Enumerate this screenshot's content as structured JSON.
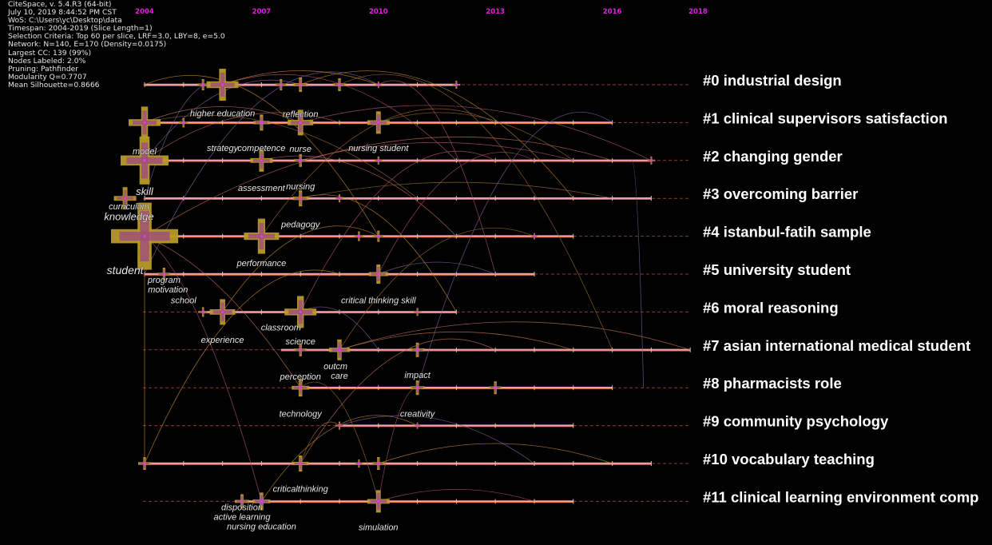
{
  "app": {
    "info_lines": [
      "CiteSpace, v. 5.4.R3 (64-bit)",
      "July 10, 2019 8:44:52 PM CST",
      "WoS: C:\\Users\\yc\\Desktop\\data",
      "Timespan: 2004-2019 (Slice Length=1)",
      "Selection Criteria: Top 60 per slice, LRF=3.0, LBY=8, e=5.0",
      "Network: N=140, E=170 (Density=0.0175)",
      "Largest CC: 139 (99%)",
      "Nodes Labeled: 2.0%",
      "Pruning: Pathfinder",
      "Modularity Q=0.7707",
      "Mean Silhouette=0.8666"
    ]
  },
  "timeline": {
    "year_marks": [
      "2004",
      "2007",
      "2010",
      "2013",
      "2016",
      "2018"
    ],
    "year_values": [
      2004,
      2007,
      2010,
      2013,
      2016,
      2018.2
    ],
    "year_color": "#e020e0"
  },
  "clusters": [
    {
      "label": "#0 industrial design",
      "start": 2004,
      "end": 2012
    },
    {
      "label": "#1 clinical supervisors satisfaction",
      "start": 2004,
      "end": 2016
    },
    {
      "label": "#2 changing gender",
      "start": 2004,
      "end": 2017
    },
    {
      "label": "#3 overcoming barrier",
      "start": 2004,
      "end": 2017
    },
    {
      "label": "#4 istanbul-fatih sample",
      "start": 2004,
      "end": 2015
    },
    {
      "label": "#5 university student",
      "start": 2004,
      "end": 2014
    },
    {
      "label": "#6 moral reasoning",
      "start": 2005.5,
      "end": 2012
    },
    {
      "label": "#7 asian international medical student",
      "start": 2007.5,
      "end": 2018
    },
    {
      "label": "#8 pharmacists role",
      "start": 2008,
      "end": 2016
    },
    {
      "label": "#9 community psychology",
      "start": 2009,
      "end": 2015
    },
    {
      "label": "#10 vocabulary teaching",
      "start": 2004,
      "end": 2017
    },
    {
      "label": "#11 clinical learning environment comp",
      "start": 2006.5,
      "end": 2015
    }
  ],
  "nodes": [
    {
      "cluster": 0,
      "year": 2006,
      "size": 20
    },
    {
      "cluster": 0,
      "year": 2005.5,
      "size": 7
    },
    {
      "cluster": 0,
      "year": 2007.5,
      "size": 7
    },
    {
      "cluster": 0,
      "year": 2008,
      "size": 9
    },
    {
      "cluster": 0,
      "year": 2009,
      "size": 8
    },
    {
      "cluster": 0,
      "year": 2010,
      "size": 4
    },
    {
      "cluster": 0,
      "year": 2012,
      "size": 5
    },
    {
      "cluster": 1,
      "year": 2004,
      "size": 20
    },
    {
      "cluster": 1,
      "year": 2005,
      "size": 6
    },
    {
      "cluster": 1,
      "year": 2007,
      "size": 10
    },
    {
      "cluster": 1,
      "year": 2008,
      "size": 16
    },
    {
      "cluster": 1,
      "year": 2010,
      "size": 14
    },
    {
      "cluster": 2,
      "year": 2004,
      "size": 30
    },
    {
      "cluster": 2,
      "year": 2007,
      "size": 14
    },
    {
      "cluster": 2,
      "year": 2008,
      "size": 8
    },
    {
      "cluster": 2,
      "year": 2010,
      "size": 5
    },
    {
      "cluster": 2,
      "year": 2017,
      "size": 5
    },
    {
      "cluster": 3,
      "year": 2003.5,
      "size": 14
    },
    {
      "cluster": 3,
      "year": 2008,
      "size": 10
    },
    {
      "cluster": 3,
      "year": 2009,
      "size": 5
    },
    {
      "cluster": 4,
      "year": 2004,
      "size": 42
    },
    {
      "cluster": 4,
      "year": 2007,
      "size": 22
    },
    {
      "cluster": 4,
      "year": 2009.5,
      "size": 6
    },
    {
      "cluster": 4,
      "year": 2010,
      "size": 7
    },
    {
      "cluster": 4,
      "year": 2014,
      "size": 4
    },
    {
      "cluster": 5,
      "year": 2004.5,
      "size": 8
    },
    {
      "cluster": 5,
      "year": 2010,
      "size": 12
    },
    {
      "cluster": 6,
      "year": 2006,
      "size": 16
    },
    {
      "cluster": 6,
      "year": 2005.5,
      "size": 6
    },
    {
      "cluster": 6,
      "year": 2008,
      "size": 20
    },
    {
      "cluster": 6,
      "year": 2011,
      "size": 5
    },
    {
      "cluster": 7,
      "year": 2008,
      "size": 8
    },
    {
      "cluster": 7,
      "year": 2009,
      "size": 13
    },
    {
      "cluster": 7,
      "year": 2011,
      "size": 9
    },
    {
      "cluster": 8,
      "year": 2008,
      "size": 11
    },
    {
      "cluster": 8,
      "year": 2011,
      "size": 9
    },
    {
      "cluster": 8,
      "year": 2013,
      "size": 8
    },
    {
      "cluster": 9,
      "year": 2009,
      "size": 5
    },
    {
      "cluster": 9,
      "year": 2011,
      "size": 4
    },
    {
      "cluster": 10,
      "year": 2004,
      "size": 8
    },
    {
      "cluster": 10,
      "year": 2008,
      "size": 10
    },
    {
      "cluster": 10,
      "year": 2010,
      "size": 8
    },
    {
      "cluster": 10,
      "year": 2009.5,
      "size": 5
    },
    {
      "cluster": 11,
      "year": 2006.5,
      "size": 9
    },
    {
      "cluster": 11,
      "year": 2007,
      "size": 11
    },
    {
      "cluster": 11,
      "year": 2010,
      "size": 14
    }
  ],
  "keyword_labels": [
    {
      "text": "higher education",
      "cluster": 1,
      "year": 2006,
      "size": "s",
      "dy": -8
    },
    {
      "text": "reflection",
      "cluster": 1,
      "year": 2008,
      "size": "s",
      "dy": -7
    },
    {
      "text": "model",
      "cluster": 2,
      "year": 2004,
      "size": "s",
      "dy": -8
    },
    {
      "text": "strategy",
      "cluster": 2,
      "year": 2006,
      "size": "s",
      "dy": -12
    },
    {
      "text": "competence",
      "cluster": 2,
      "year": 2007,
      "size": "s",
      "dy": -12
    },
    {
      "text": "nurse",
      "cluster": 2,
      "year": 2008,
      "size": "s",
      "dy": -11
    },
    {
      "text": "nursing student",
      "cluster": 2,
      "year": 2010,
      "size": "s",
      "dy": -12
    },
    {
      "text": "assessment",
      "cluster": 3,
      "year": 2007,
      "size": "s",
      "dy": -9
    },
    {
      "text": "nursing",
      "cluster": 3,
      "year": 2008,
      "size": "s",
      "dy": -11
    },
    {
      "text": "skill",
      "cluster": 3,
      "year": 2004,
      "size": "m",
      "dy": -4
    },
    {
      "text": "curriculum",
      "cluster": 3,
      "year": 2003.6,
      "size": "s",
      "dy": 14
    },
    {
      "text": "knowledge",
      "cluster": 4,
      "year": 2003.6,
      "size": "m",
      "dy": -20
    },
    {
      "text": "pedagogy",
      "cluster": 4,
      "year": 2008,
      "size": "s",
      "dy": -11
    },
    {
      "text": "performance",
      "cluster": 5,
      "year": 2007,
      "size": "s",
      "dy": -10
    },
    {
      "text": "student",
      "cluster": 5,
      "year": 2003.5,
      "size": "l",
      "dy": 0
    },
    {
      "text": "program",
      "cluster": 5,
      "year": 2004.5,
      "size": "s",
      "dy": 11
    },
    {
      "text": "motivation",
      "cluster": 5,
      "year": 2004.6,
      "size": "s",
      "dy": 23
    },
    {
      "text": "school",
      "cluster": 6,
      "year": 2005,
      "size": "s",
      "dy": -11
    },
    {
      "text": "critical thinking skill",
      "cluster": 6,
      "year": 2010,
      "size": "s",
      "dy": -11
    },
    {
      "text": "classroom",
      "cluster": 6,
      "year": 2007.5,
      "size": "s",
      "dy": 23
    },
    {
      "text": "experience",
      "cluster": 7,
      "year": 2006,
      "size": "s",
      "dy": -9
    },
    {
      "text": "science",
      "cluster": 7,
      "year": 2008,
      "size": "s",
      "dy": -7
    },
    {
      "text": "outcm",
      "cluster": 8,
      "year": 2008.9,
      "size": "s",
      "dy": -23
    },
    {
      "text": "care",
      "cluster": 8,
      "year": 2009,
      "size": "s",
      "dy": -11
    },
    {
      "text": "perception",
      "cluster": 8,
      "year": 2008,
      "size": "s",
      "dy": -10
    },
    {
      "text": "impact",
      "cluster": 8,
      "year": 2011,
      "size": "s",
      "dy": -12
    },
    {
      "text": "technology",
      "cluster": 9,
      "year": 2008,
      "size": "s",
      "dy": -11
    },
    {
      "text": "creativity",
      "cluster": 9,
      "year": 2011,
      "size": "s",
      "dy": -11
    },
    {
      "text": "criticalthinking",
      "cluster": 11,
      "year": 2008,
      "size": "s",
      "dy": -12
    },
    {
      "text": "disposition",
      "cluster": 11,
      "year": 2006.5,
      "size": "s",
      "dy": 11
    },
    {
      "text": "active learning",
      "cluster": 11,
      "year": 2006.5,
      "size": "s",
      "dy": 23
    },
    {
      "text": "nursing education",
      "cluster": 11,
      "year": 2007,
      "size": "s",
      "dy": 35
    },
    {
      "text": "simulation",
      "cluster": 11,
      "year": 2010,
      "size": "s",
      "dy": 36
    }
  ],
  "links": [
    [
      0,
      2004,
      4,
      2010,
      -60
    ],
    [
      0,
      2006,
      2,
      2012,
      -50
    ],
    [
      1,
      2004,
      3,
      2011,
      -40
    ],
    [
      2,
      2004,
      0,
      2008,
      -30
    ],
    [
      4,
      2004,
      2,
      2016,
      -90
    ],
    [
      0,
      2008,
      3,
      2015,
      -70
    ],
    [
      1,
      2008,
      2,
      2017,
      -60
    ],
    [
      4,
      2007,
      1,
      2013,
      -70
    ],
    [
      5,
      2004,
      0,
      2010,
      -80
    ],
    [
      2,
      2007,
      4,
      2012,
      -30
    ],
    [
      3,
      2008,
      6,
      2012,
      -30
    ],
    [
      6,
      2008,
      2,
      2013,
      -60
    ],
    [
      7,
      2009,
      4,
      2014,
      -50
    ],
    [
      8,
      2011,
      1,
      2016,
      -80
    ],
    [
      7,
      2009,
      7,
      2018,
      -70
    ],
    [
      4,
      2004,
      10,
      2004,
      0
    ],
    [
      4,
      2004,
      11,
      2007,
      60
    ],
    [
      8,
      2008,
      11,
      2010,
      -40
    ],
    [
      9,
      2009,
      10,
      2014,
      -40
    ],
    [
      10,
      2008,
      7,
      2013,
      -60
    ],
    [
      11,
      2007,
      9,
      2011,
      -50
    ],
    [
      0,
      2010,
      5,
      2013,
      -40
    ],
    [
      1,
      2010,
      2,
      2015,
      -40
    ],
    [
      3,
      2004,
      0,
      2006,
      -20
    ],
    [
      2,
      2004,
      1,
      2009,
      -40
    ],
    [
      6,
      2006,
      4,
      2010,
      -50
    ],
    [
      5,
      2010,
      2,
      2014,
      -50
    ],
    [
      0,
      2009,
      7,
      2016,
      -80
    ],
    [
      2,
      2016.5,
      8,
      2016.8,
      0
    ],
    [
      4,
      2004,
      8,
      2008,
      40
    ],
    [
      10,
      2004,
      5,
      2009,
      -40
    ],
    [
      11,
      2010,
      8,
      2011,
      0
    ],
    [
      10,
      2008,
      9,
      2009,
      -20
    ],
    [
      6,
      2008,
      7,
      2010,
      -25
    ],
    [
      1,
      2004,
      1,
      2008,
      -40
    ],
    [
      0,
      2006,
      0,
      2010,
      -35
    ],
    [
      2,
      2008,
      2,
      2015,
      -45
    ],
    [
      3,
      2008,
      3,
      2016,
      -40
    ],
    [
      5,
      2010,
      5,
      2013,
      -30
    ],
    [
      7,
      2009,
      7,
      2015,
      -45
    ],
    [
      10,
      2010,
      10,
      2016,
      -50
    ],
    [
      11,
      2010,
      11,
      2014,
      -30
    ]
  ]
}
